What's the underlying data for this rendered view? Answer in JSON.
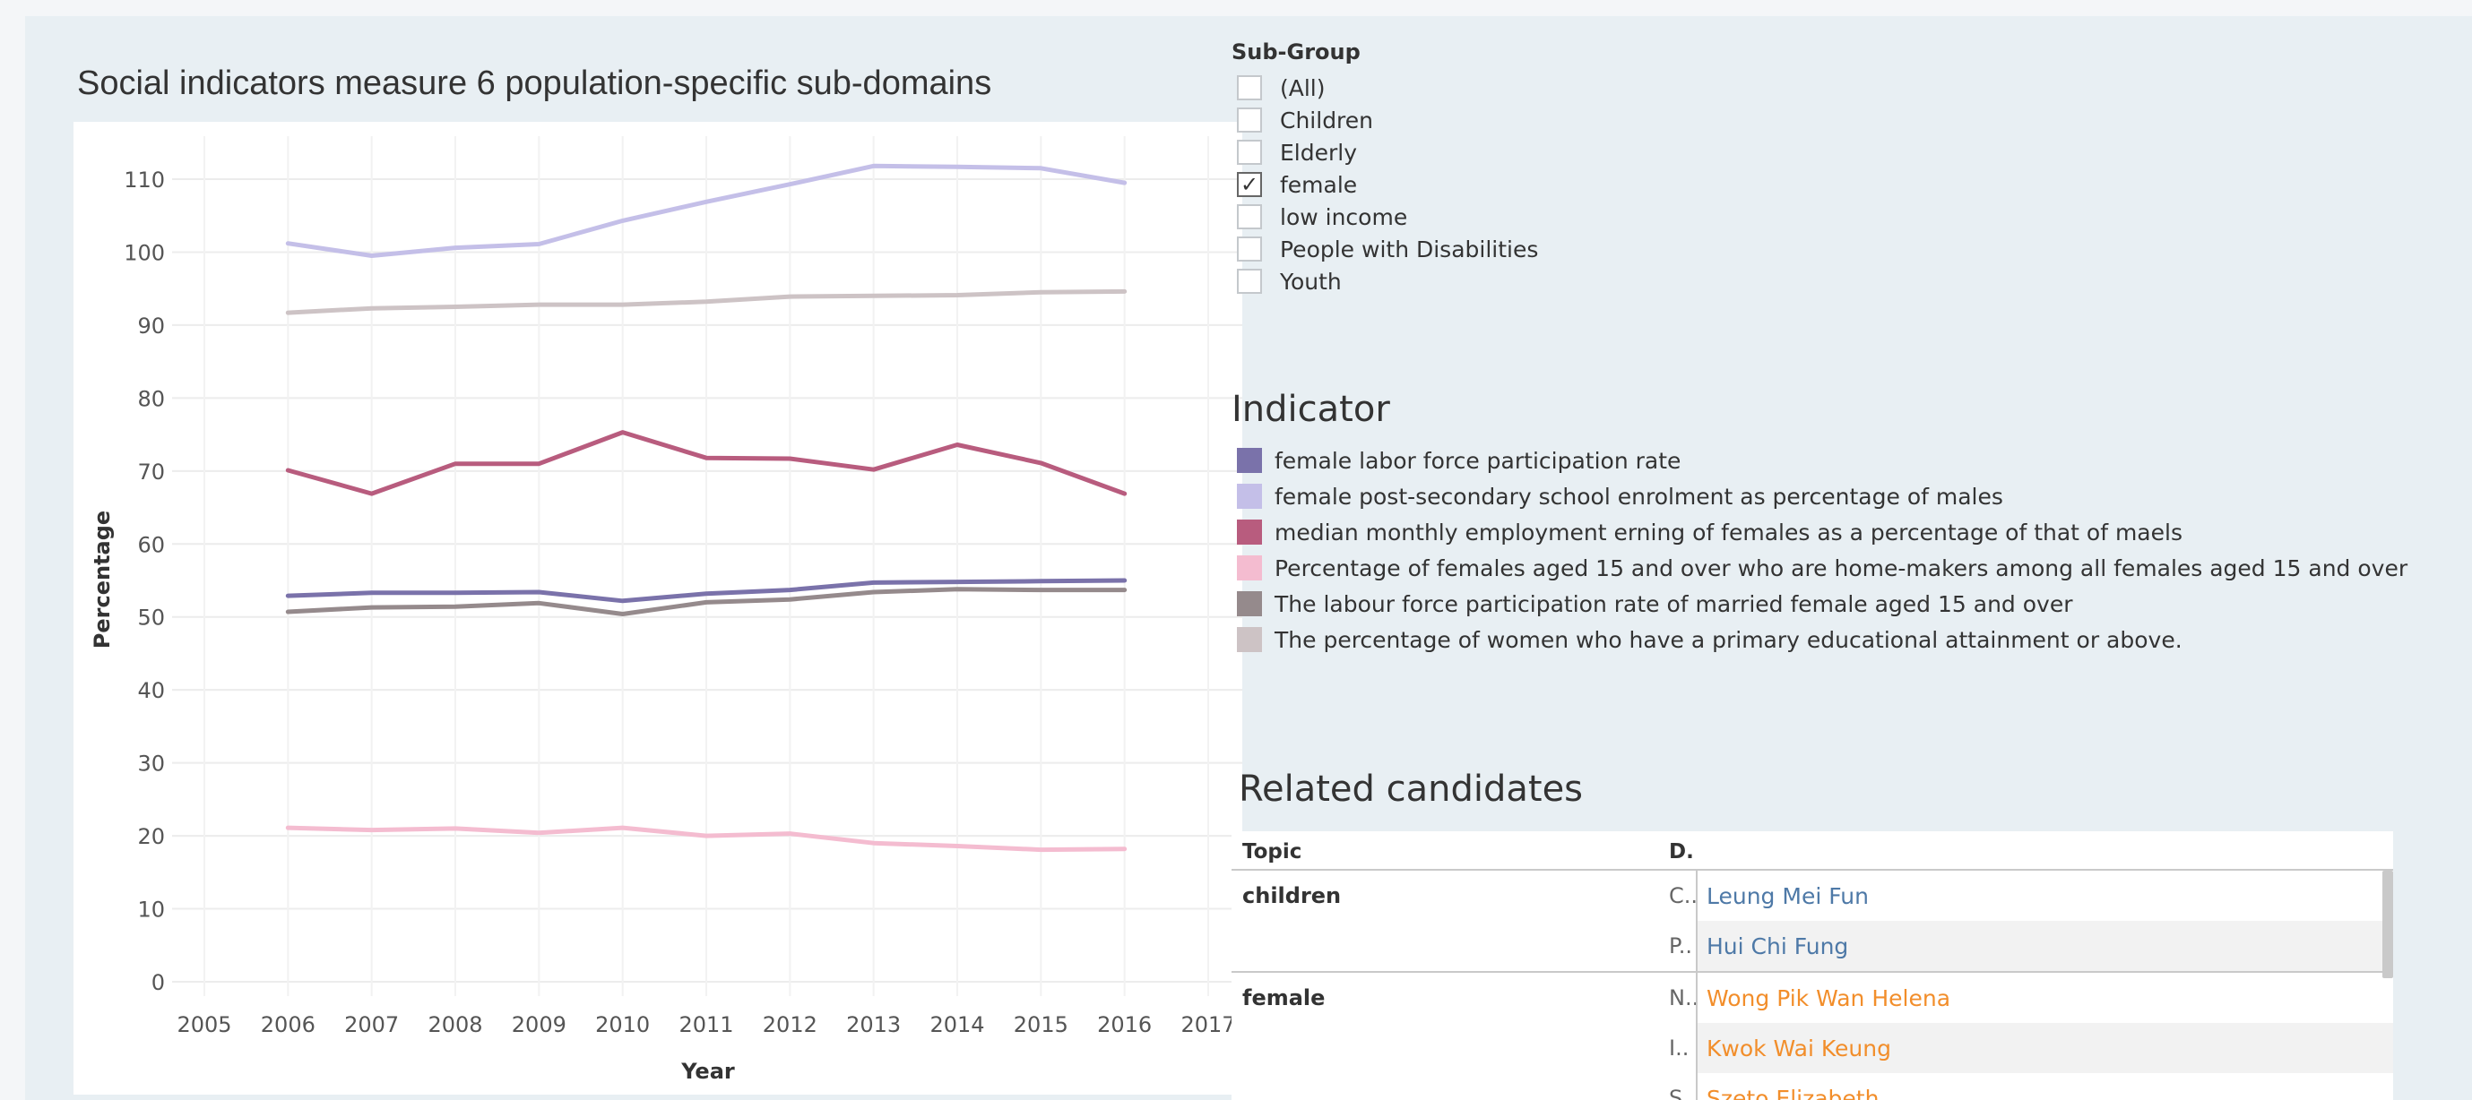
{
  "chart_title": "Social indicators measure 6 population-specific sub-domains",
  "filter": {
    "title": "Sub-Group",
    "items": [
      {
        "label": "(All)",
        "checked": false
      },
      {
        "label": "Children",
        "checked": false
      },
      {
        "label": "Elderly",
        "checked": false
      },
      {
        "label": "female",
        "checked": true
      },
      {
        "label": "low income",
        "checked": false
      },
      {
        "label": "People with Disabilities",
        "checked": false
      },
      {
        "label": "Youth",
        "checked": false
      }
    ],
    "check_glyph": "✓"
  },
  "legend": {
    "title": "Indicator",
    "items": [
      {
        "label": "female labor force participation rate",
        "color": "#7a72aa"
      },
      {
        "label": "female post-secondary school enrolment as percentage of males",
        "color": "#c4bfe8"
      },
      {
        "label": "median monthly employment erning of females as a percentage of that of maels",
        "color": "#b85c7e"
      },
      {
        "label": "Percentage of females aged 15 and over who are home-makers among all females aged 15 and over",
        "color": "#f4bcd0"
      },
      {
        "label": "The labour force participation rate of married female aged 15 and over",
        "color": "#958a8c"
      },
      {
        "label": "The percentage of women who have a primary educational attainment or above.",
        "color": "#cdc3c5"
      }
    ]
  },
  "related": {
    "title": "Related candidates",
    "columns": [
      "Topic",
      "D."
    ],
    "groups": [
      {
        "topic": "children",
        "color": "#4e79a7",
        "rows": [
          {
            "d": "C..",
            "name": "Leung Mei Fun"
          },
          {
            "d": "P..",
            "name": "Hui Chi Fung"
          }
        ]
      },
      {
        "topic": "female",
        "color": "#f28e2b",
        "rows": [
          {
            "d": "N..",
            "name": "Wong Pik Wan Helena"
          },
          {
            "d": "I..",
            "name": "Kwok Wai Keung"
          },
          {
            "d": "S..",
            "name": "Szeto Elizabeth"
          }
        ]
      }
    ]
  },
  "chart_data": {
    "type": "line",
    "xlabel": "Year",
    "ylabel": "Percentage",
    "xlim": [
      2005,
      2017
    ],
    "ylim": [
      0,
      110
    ],
    "x_ticks": [
      "2005",
      "2006",
      "2007",
      "2008",
      "2009",
      "2010",
      "2011",
      "2012",
      "2013",
      "2014",
      "2015",
      "2016",
      "2017"
    ],
    "y_ticks": [
      "0",
      "10",
      "20",
      "30",
      "40",
      "50",
      "60",
      "70",
      "80",
      "90",
      "100",
      "110"
    ],
    "grid": true,
    "x": [
      2006,
      2007,
      2008,
      2009,
      2010,
      2011,
      2012,
      2013,
      2014,
      2015,
      2016
    ],
    "series": [
      {
        "name": "female post-secondary school enrolment as percentage of males",
        "color": "#c4bfe8",
        "values": [
          101.2,
          99.5,
          100.6,
          101.1,
          104.3,
          106.9,
          109.3,
          111.8,
          111.7,
          111.5,
          109.5
        ]
      },
      {
        "name": "The percentage of women who have a primary educational attainment or above.",
        "color": "#cdc3c5",
        "values": [
          91.7,
          92.3,
          92.5,
          92.8,
          92.8,
          93.2,
          93.9,
          94.0,
          94.1,
          94.5,
          94.6
        ]
      },
      {
        "name": "median monthly employment erning of females as a percentage of that of maels",
        "color": "#b85c7e",
        "values": [
          70.1,
          66.9,
          71.0,
          71.0,
          75.3,
          71.8,
          71.7,
          70.2,
          73.6,
          71.1,
          66.9
        ]
      },
      {
        "name": "female labor force participation rate",
        "color": "#7a72aa",
        "values": [
          52.9,
          53.3,
          53.3,
          53.4,
          52.2,
          53.2,
          53.7,
          54.7,
          54.8,
          54.9,
          55.0
        ]
      },
      {
        "name": "The labour force participation rate of married female aged 15 and over",
        "color": "#958a8c",
        "values": [
          50.7,
          51.3,
          51.4,
          51.9,
          50.4,
          52.0,
          52.4,
          53.4,
          53.8,
          53.7,
          53.7
        ]
      },
      {
        "name": "Percentage of females aged 15 and over who are home-makers among all females aged 15 and over",
        "color": "#f4bcd0",
        "values": [
          21.1,
          20.8,
          21.0,
          20.4,
          21.1,
          20.0,
          20.3,
          19.0,
          18.6,
          18.1,
          18.2
        ]
      }
    ]
  }
}
